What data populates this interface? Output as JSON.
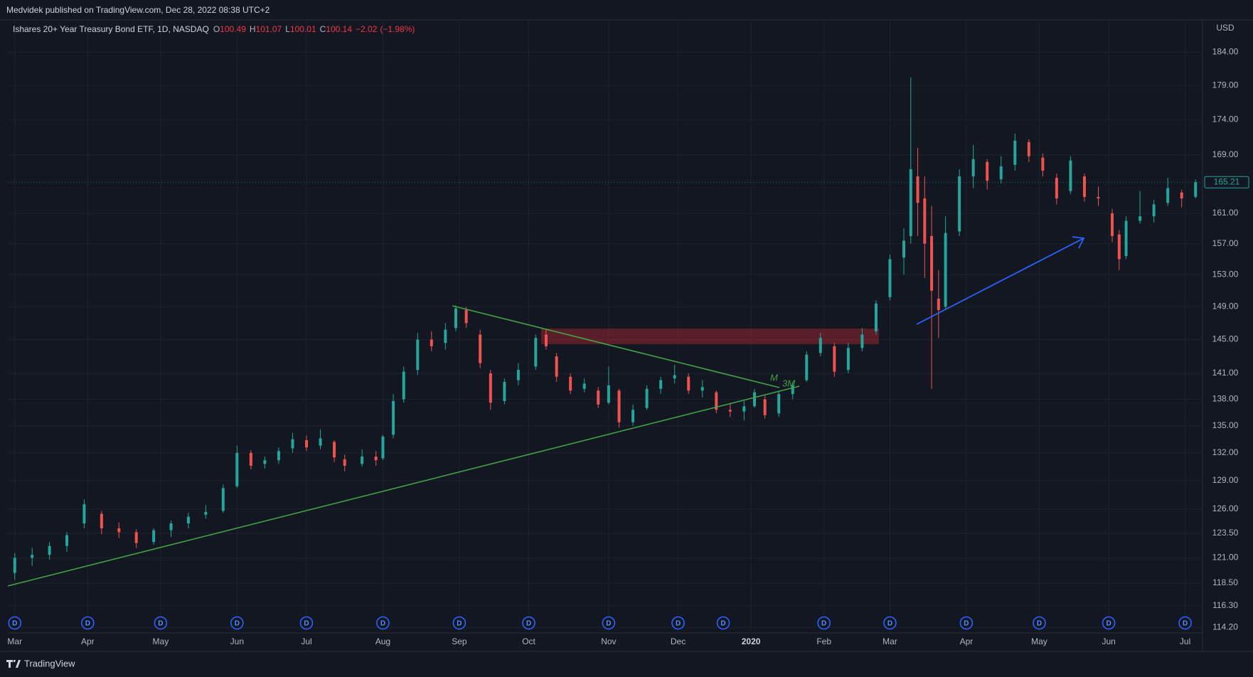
{
  "header": {
    "published": "Medvidek published on TradingView.com, Dec 28, 2022 08:38 UTC+2"
  },
  "chart_data": {
    "type": "candlestick",
    "title": "Ishares 20+ Year Treasury Bond ETF, 1D, NASDAQ",
    "ohlc_legend": {
      "open_label": "O",
      "open": 100.49,
      "high_label": "H",
      "high": 101.07,
      "low_label": "L",
      "low": 100.01,
      "close_label": "C",
      "close": 100.14,
      "change": {
        "value": -2.02,
        "label": "−2.02"
      },
      "change_percent": {
        "value": -1.98,
        "label": "(−1.98%)"
      }
    },
    "currency": "USD",
    "log": true,
    "grid": true,
    "up_color": "#26a69a",
    "down_color": "#ef5350",
    "xlim": [
      -2,
      342
    ],
    "ylim": [
      113.7,
      189
    ],
    "xticks": [
      {
        "value": 0,
        "label": "Mar"
      },
      {
        "value": 21,
        "label": "Apr"
      },
      {
        "value": 42,
        "label": "May"
      },
      {
        "value": 64,
        "label": "Jun"
      },
      {
        "value": 84,
        "label": "Jul"
      },
      {
        "value": 106,
        "label": "Aug"
      },
      {
        "value": 128,
        "label": "Sep"
      },
      {
        "value": 148,
        "label": "Oct"
      },
      {
        "value": 171,
        "label": "Nov"
      },
      {
        "value": 191,
        "label": "Dec"
      },
      {
        "value": 212,
        "label": "2020"
      },
      {
        "value": 233,
        "label": "Feb"
      },
      {
        "value": 252,
        "label": "Mar"
      },
      {
        "value": 274,
        "label": "Apr"
      },
      {
        "value": 295,
        "label": "May"
      },
      {
        "value": 315,
        "label": "Jun"
      },
      {
        "value": 337,
        "label": "Jul"
      }
    ],
    "yticks": [
      {
        "value": 114.2,
        "label": "114.20"
      },
      {
        "value": 116.3,
        "label": "116.30"
      },
      {
        "value": 118.5,
        "label": "118.50"
      },
      {
        "value": 121,
        "label": "121.00"
      },
      {
        "value": 123.5,
        "label": "123.50"
      },
      {
        "value": 126,
        "label": "126.00"
      },
      {
        "value": 129,
        "label": "129.00"
      },
      {
        "value": 132,
        "label": "132.00"
      },
      {
        "value": 135,
        "label": "135.00"
      },
      {
        "value": 138,
        "label": "138.00"
      },
      {
        "value": 141,
        "label": "141.00"
      },
      {
        "value": 145,
        "label": "145.00"
      },
      {
        "value": 149,
        "label": "149.00"
      },
      {
        "value": 153,
        "label": "153.00"
      },
      {
        "value": 157,
        "label": "157.00"
      },
      {
        "value": 161,
        "label": "161.00"
      },
      {
        "value": 169,
        "label": "169.00"
      },
      {
        "value": 174,
        "label": "174.00"
      },
      {
        "value": 179,
        "label": "179.00"
      },
      {
        "value": 184,
        "label": "184.00"
      }
    ],
    "x": [
      0,
      5,
      10,
      15,
      20,
      25,
      30,
      35,
      40,
      45,
      50,
      55,
      60,
      64,
      68,
      72,
      76,
      80,
      84,
      88,
      92,
      95,
      100,
      104,
      106,
      109,
      112,
      116,
      120,
      124,
      127,
      130,
      134,
      137,
      141,
      145,
      150,
      153,
      156,
      160,
      164,
      168,
      171,
      174,
      178,
      182,
      186,
      190,
      194,
      198,
      202,
      206,
      210,
      213,
      216,
      220,
      224,
      228,
      232,
      236,
      240,
      244,
      248,
      252,
      256,
      258,
      260,
      262,
      264,
      266,
      268,
      272,
      276,
      280,
      284,
      288,
      292,
      296,
      300,
      304,
      308,
      312,
      316,
      318,
      320,
      324,
      328,
      332,
      336,
      340
    ],
    "open": [
      119.5,
      121.0,
      121.3,
      122.2,
      124.5,
      125.5,
      124.0,
      123.6,
      122.6,
      123.8,
      124.5,
      125.4,
      125.8,
      128.4,
      132.0,
      130.8,
      131.2,
      132.5,
      133.4,
      132.8,
      133.2,
      131.3,
      130.8,
      131.6,
      131.4,
      134.0,
      138.0,
      141.4,
      145.0,
      144.6,
      146.4,
      148.6,
      145.6,
      141.0,
      137.8,
      140.2,
      141.8,
      145.6,
      143.0,
      140.6,
      139.2,
      139.0,
      137.6,
      139.0,
      135.4,
      137.0,
      139.2,
      140.4,
      140.6,
      139.0,
      138.8,
      136.8,
      136.6,
      137.2,
      138.0,
      136.4,
      138.6,
      140.2,
      143.4,
      144.2,
      141.4,
      144.0,
      146.0,
      150.2,
      155.2,
      158.0,
      166.0,
      163.0,
      158.0,
      150.0,
      149.0,
      158.6,
      166.0,
      168.0,
      165.6,
      167.6,
      170.8,
      168.6,
      165.8,
      164.0,
      166.0,
      163.2,
      161.0,
      158.2,
      155.4,
      160.0,
      160.6,
      162.4,
      163.8,
      163.2
    ],
    "high": [
      121.5,
      122.0,
      122.6,
      123.6,
      127.0,
      125.8,
      124.6,
      123.9,
      124.0,
      124.8,
      125.6,
      126.4,
      128.6,
      132.8,
      132.3,
      131.6,
      132.6,
      134.2,
      133.9,
      134.6,
      133.4,
      131.8,
      132.4,
      132.2,
      134.0,
      138.6,
      141.8,
      145.8,
      146.0,
      147.0,
      149.2,
      149.0,
      146.2,
      141.4,
      140.4,
      142.2,
      145.6,
      146.2,
      143.4,
      141.0,
      140.4,
      139.4,
      141.8,
      139.2,
      137.4,
      139.6,
      140.6,
      142.0,
      141.0,
      140.2,
      139.0,
      137.6,
      137.8,
      139.2,
      138.4,
      139.0,
      140.0,
      143.6,
      145.8,
      144.6,
      144.6,
      146.4,
      149.8,
      155.6,
      159.0,
      180.2,
      170.0,
      166.0,
      162.0,
      153.6,
      160.6,
      167.0,
      170.4,
      168.4,
      168.8,
      172.0,
      171.2,
      169.2,
      166.4,
      168.8,
      166.4,
      164.6,
      161.6,
      158.8,
      160.6,
      164.0,
      162.8,
      165.8,
      164.2,
      165.6
    ],
    "low": [
      118.8,
      120.2,
      120.8,
      121.6,
      124.0,
      123.4,
      123.0,
      122.0,
      122.3,
      123.1,
      124.0,
      125.0,
      125.6,
      128.2,
      130.2,
      130.3,
      130.8,
      132.0,
      132.2,
      132.4,
      131.0,
      130.0,
      130.5,
      130.6,
      131.2,
      133.6,
      137.6,
      140.8,
      143.6,
      143.8,
      146.0,
      146.4,
      141.6,
      136.8,
      137.4,
      139.6,
      141.4,
      143.8,
      140.0,
      138.6,
      138.8,
      137.0,
      137.4,
      134.8,
      135.0,
      136.8,
      138.6,
      139.8,
      138.6,
      138.2,
      136.4,
      136.0,
      135.6,
      137.0,
      135.8,
      136.0,
      138.0,
      140.0,
      143.0,
      140.6,
      141.0,
      143.6,
      145.6,
      149.8,
      153.0,
      157.0,
      158.0,
      152.6,
      139.2,
      145.2,
      148.6,
      158.0,
      164.4,
      164.2,
      165.0,
      166.8,
      168.0,
      166.0,
      162.2,
      163.6,
      162.6,
      162.0,
      157.2,
      153.6,
      155.0,
      159.6,
      159.8,
      162.0,
      161.8,
      163.0
    ],
    "close": [
      121.0,
      121.3,
      122.2,
      123.3,
      126.5,
      124.0,
      123.6,
      122.5,
      123.8,
      124.5,
      125.2,
      125.7,
      128.2,
      132.0,
      130.6,
      131.2,
      132.2,
      133.5,
      132.6,
      133.6,
      131.5,
      130.6,
      131.6,
      131.2,
      133.8,
      137.8,
      141.2,
      145.0,
      144.2,
      146.2,
      148.8,
      147.0,
      142.2,
      137.6,
      140.0,
      141.4,
      145.2,
      144.2,
      140.6,
      139.0,
      139.8,
      137.4,
      139.6,
      135.4,
      136.8,
      139.2,
      140.2,
      140.8,
      139.0,
      139.4,
      136.8,
      136.6,
      137.2,
      138.8,
      136.2,
      138.6,
      139.6,
      143.2,
      145.2,
      141.2,
      144.0,
      145.6,
      149.4,
      155.0,
      157.4,
      167.0,
      162.4,
      157.0,
      151.0,
      148.6,
      158.4,
      166.0,
      168.4,
      165.4,
      167.4,
      171.0,
      168.8,
      166.8,
      163.0,
      168.2,
      163.2,
      163.0,
      158.0,
      155.0,
      160.0,
      160.6,
      162.2,
      164.4,
      163.0,
      165.21
    ],
    "dividends": {
      "label": "D",
      "x": [
        0,
        21,
        42,
        64,
        84,
        106,
        128,
        148,
        171,
        191,
        204,
        233,
        252,
        274,
        295,
        315,
        337
      ]
    },
    "annotations": [
      "M",
      "3M"
    ]
  },
  "footer": {
    "brand": "TradingView"
  }
}
